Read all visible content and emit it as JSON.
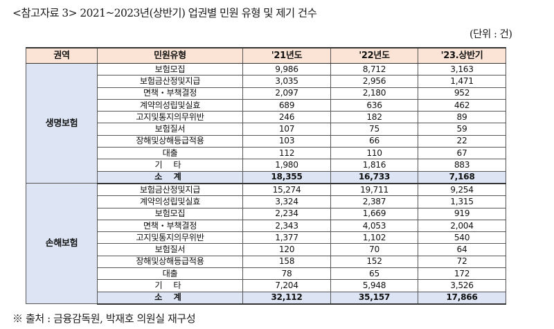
{
  "title": "<참고자료 3> 2021~2023년(상반기) 업권별 민원 유형 및 제기 건수",
  "unit": "(단위 : 건)",
  "table": {
    "headers": [
      "권역",
      "민원유형",
      "'21년도",
      "'22년도",
      "'23.상반기"
    ],
    "sections": [
      {
        "region": "생명보험",
        "rows": [
          {
            "type": "보험모집",
            "y21": "9,986",
            "y22": "8,712",
            "y23h1": "3,163"
          },
          {
            "type": "보험금산정및지급",
            "y21": "3,035",
            "y22": "2,956",
            "y23h1": "1,471"
          },
          {
            "type": "면책・부책결정",
            "y21": "2,097",
            "y22": "2,180",
            "y23h1": "952"
          },
          {
            "type": "계약의성립및실효",
            "y21": "689",
            "y22": "636",
            "y23h1": "462"
          },
          {
            "type": "고지및통지의무위반",
            "y21": "246",
            "y22": "182",
            "y23h1": "89"
          },
          {
            "type": "보험질서",
            "y21": "107",
            "y22": "75",
            "y23h1": "59"
          },
          {
            "type": "장해및상해등급적용",
            "y21": "103",
            "y22": "66",
            "y23h1": "22"
          },
          {
            "type": "대출",
            "y21": "112",
            "y22": "110",
            "y23h1": "67"
          },
          {
            "type": "기 타",
            "y21": "1,980",
            "y22": "1,816",
            "y23h1": "883"
          }
        ],
        "subtotal": {
          "label": "소 계",
          "y21": "18,355",
          "y22": "16,733",
          "y23h1": "7,168"
        }
      },
      {
        "region": "손해보험",
        "rows": [
          {
            "type": "보험금산정및지급",
            "y21": "15,274",
            "y22": "19,711",
            "y23h1": "9,254"
          },
          {
            "type": "계약의성립및실효",
            "y21": "3,324",
            "y22": "2,387",
            "y23h1": "1,315"
          },
          {
            "type": "보험모집",
            "y21": "2,234",
            "y22": "1,669",
            "y23h1": "919"
          },
          {
            "type": "면책・부책결정",
            "y21": "2,343",
            "y22": "4,053",
            "y23h1": "2,004"
          },
          {
            "type": "고지및통지의무위반",
            "y21": "1,377",
            "y22": "1,102",
            "y23h1": "540"
          },
          {
            "type": "보험질서",
            "y21": "120",
            "y22": "70",
            "y23h1": "64"
          },
          {
            "type": "장해및상해등급적용",
            "y21": "158",
            "y22": "152",
            "y23h1": "72"
          },
          {
            "type": "대출",
            "y21": "78",
            "y22": "65",
            "y23h1": "172"
          },
          {
            "type": "기 타",
            "y21": "7,204",
            "y22": "5,948",
            "y23h1": "3,526"
          }
        ],
        "subtotal": {
          "label": "소 계",
          "y21": "32,112",
          "y22": "35,157",
          "y23h1": "17,866"
        }
      }
    ]
  },
  "source": "※ 출처 : 금융감독원, 박재호 의원실 재구성",
  "colors": {
    "header_bg": "#fbe4d5",
    "region_bg": "#dde5f5",
    "subtotal_bg": "#dde5f5",
    "border": "#555555"
  }
}
